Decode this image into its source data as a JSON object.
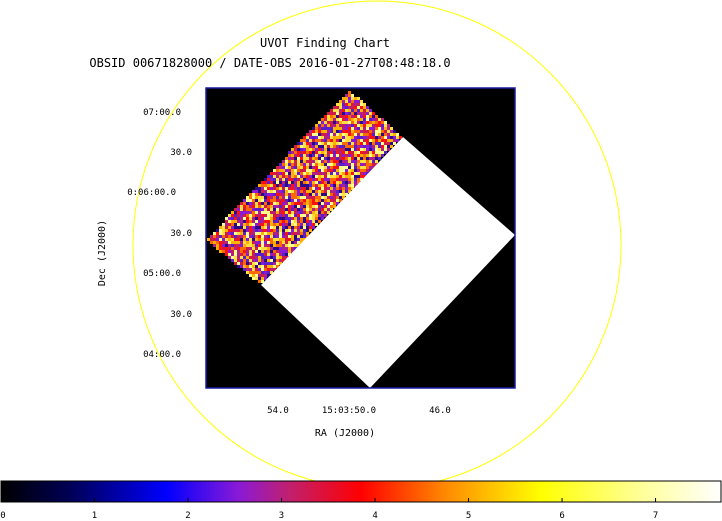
{
  "chart_data": {
    "type": "heatmap",
    "title": "UVOT Finding Chart",
    "subtitle": "OBSID 00671828000 / DATE-OBS 2016-01-27T08:48:18.0",
    "xlabel": "RA (J2000)",
    "ylabel": "Dec (J2000)",
    "x_ticks": [
      "54.0",
      "15:03:50.0",
      "46.0"
    ],
    "y_ticks": [
      "07:00.0",
      "30.0",
      "0:06:00.0",
      "30.0",
      "05:00.0",
      "30.0",
      "04:00.0"
    ],
    "colorbar": {
      "ticks": [
        "0",
        "1",
        "2",
        "3",
        "4",
        "5",
        "6",
        "7"
      ],
      "range": [
        0,
        7.7
      ],
      "colormap": "heat (black-blue-purple-red-orange-yellow-white)"
    },
    "grid": false,
    "overlay": "yellow circle (field of view)",
    "legend": "none"
  },
  "colors": {
    "frame": "#1a1aa0",
    "circle": "#ffff00",
    "background": "#000000",
    "saturated": "#ffffff"
  }
}
